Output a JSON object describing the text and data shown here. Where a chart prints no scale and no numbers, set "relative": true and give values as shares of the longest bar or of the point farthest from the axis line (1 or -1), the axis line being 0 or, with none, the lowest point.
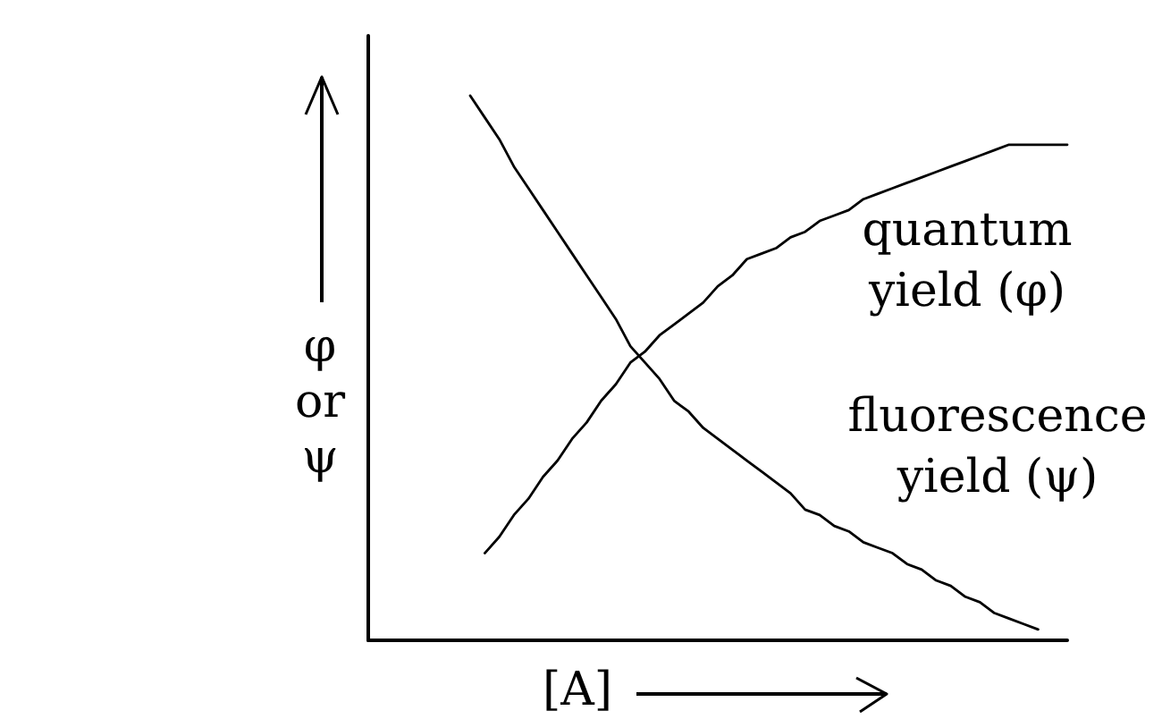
{
  "chart_data": {
    "type": "line",
    "relative": true,
    "xlabel": "[A]",
    "ylabel": "φ or ψ",
    "categories": [
      null,
      null,
      null,
      null,
      null,
      null,
      null,
      null,
      null,
      null,
      null,
      null,
      null,
      null,
      null,
      null,
      null,
      null,
      null,
      null,
      null,
      null,
      null,
      null,
      null,
      null,
      null,
      null,
      null,
      null,
      null,
      null,
      null,
      null,
      null,
      null,
      null,
      null,
      null,
      null,
      null,
      null,
      null,
      null,
      null,
      null,
      null,
      null,
      null
    ],
    "series": [
      {
        "name": "quantum yield (φ)",
        "color": "#000000",
        "values": [
          null,
          null,
          null,
          null,
          null,
          null,
          null,
          null,
          0.16,
          0.19,
          0.23,
          0.26,
          0.3,
          0.33,
          0.37,
          0.4,
          0.44,
          0.47,
          0.51,
          0.53,
          0.56,
          0.58,
          0.6,
          0.62,
          0.65,
          0.67,
          0.7,
          0.71,
          0.72,
          0.74,
          0.75,
          0.77,
          0.78,
          0.79,
          0.81,
          0.82,
          0.83,
          0.84,
          0.85,
          0.86,
          0.87,
          0.88,
          0.89,
          0.9,
          0.91,
          0.91,
          0.91,
          0.91,
          0.91
        ]
      },
      {
        "name": "fluorescence yield (ψ)",
        "color": "#000000",
        "values": [
          null,
          null,
          null,
          null,
          null,
          null,
          null,
          1,
          0.96,
          0.92,
          0.87,
          0.83,
          0.79,
          0.75,
          0.71,
          0.67,
          0.63,
          0.59,
          0.54,
          0.51,
          0.48,
          0.44,
          0.42,
          0.39,
          0.37,
          0.35,
          0.33,
          0.31,
          0.29,
          0.27,
          0.24,
          0.23,
          0.21,
          0.2,
          0.18,
          0.17,
          0.16,
          0.14,
          0.13,
          0.11,
          0.1,
          0.08,
          0.07,
          0.05,
          0.04,
          0.03,
          0.02,
          null,
          null
        ]
      }
    ]
  }
}
